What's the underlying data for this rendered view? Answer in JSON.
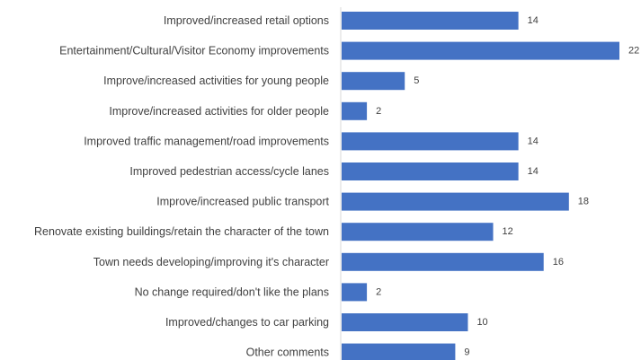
{
  "chart_data": {
    "type": "bar",
    "orientation": "horizontal",
    "title": "",
    "xlabel": "",
    "ylabel": "",
    "grid": false,
    "legend": "none",
    "bar_color": "#4472C4",
    "categories": [
      "Improved/increased retail options",
      "Entertainment/Cultural/Visitor Economy improvements",
      "Improve/increased activities for young people",
      "Improve/increased activities for older people",
      "Improved traffic management/road improvements",
      "Improved pedestrian access/cycle lanes",
      "Improve/increased public transport",
      "Renovate existing buildings/retain the character of the town",
      "Town needs developing/improving it's character",
      "No change required/don't like the plans",
      "Improved/changes to car parking",
      "Other comments"
    ],
    "values": [
      14,
      22,
      5,
      2,
      14,
      14,
      18,
      12,
      16,
      2,
      10,
      9
    ],
    "xlim": [
      0,
      22
    ]
  }
}
